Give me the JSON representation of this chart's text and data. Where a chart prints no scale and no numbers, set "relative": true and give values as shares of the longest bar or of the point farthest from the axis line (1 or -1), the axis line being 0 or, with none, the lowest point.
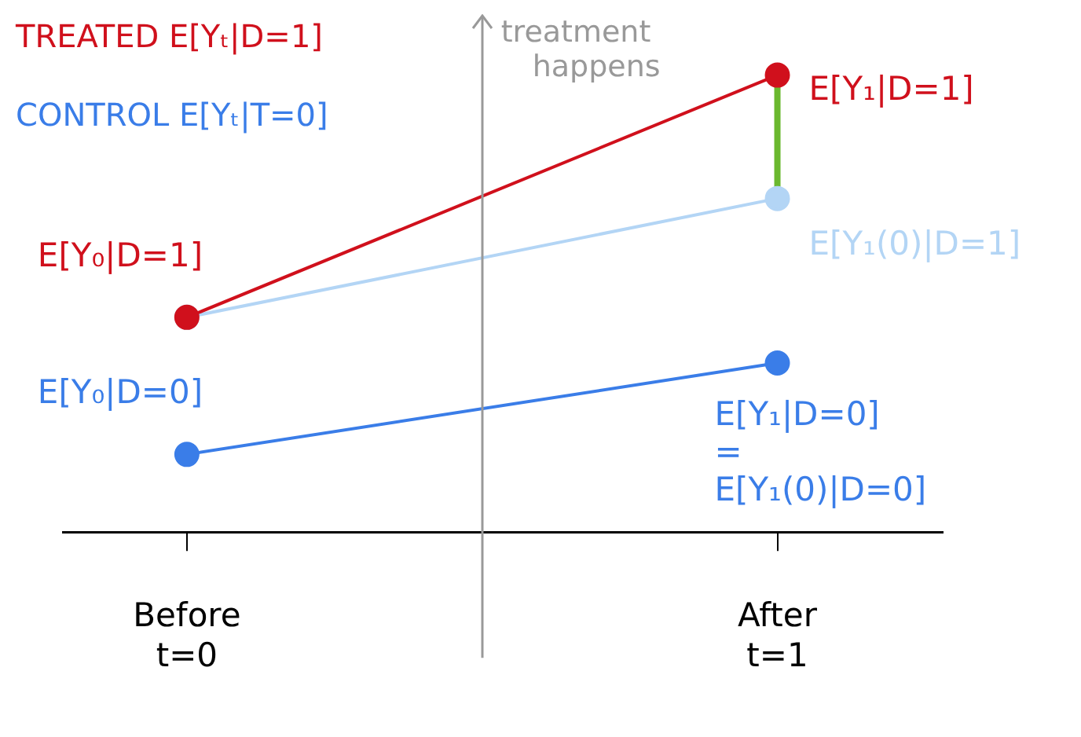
{
  "chart_data": {
    "type": "line",
    "relative": true,
    "categories": [
      "Before\nt=0",
      "After\nt=1"
    ],
    "series": [
      {
        "name": "TREATED E[Yₜ|D=1]",
        "color": "#d0101c",
        "values": [
          0.47,
          1
        ],
        "marker": "circle"
      },
      {
        "name": "CONTROL E[Yₜ|T=0]",
        "color": "#3a7de8",
        "values": [
          0.17,
          0.37
        ],
        "marker": "circle"
      },
      {
        "color": "#b3d5f5",
        "values": [
          0.47,
          0.73
        ],
        "marker": "circle"
      },
      {
        "color": "#6ab82e",
        "x": [
          "After\nt=1",
          "After\nt=1"
        ],
        "values": [
          0.73,
          1
        ],
        "marker": "none"
      }
    ],
    "legend": "top left",
    "annotations": [
      "treatment\nhappens",
      {
        "text": "E[Y₀|D=1]",
        "x": "Before\nt=0",
        "y": 0.47
      },
      {
        "text": "E[Y₁|D=1]",
        "x": "After\nt=1",
        "y": 1
      },
      {
        "text": "E[Y₁(0)|D=1]",
        "x": "After\nt=1",
        "y": 0.73
      },
      {
        "text": "E[Y₀|D=0]",
        "x": "Before\nt=0",
        "y": 0.17
      },
      {
        "text": "E[Y₁|D=0]\n=\nE[Y₁(0)|D=0]",
        "x": "After\nt=1",
        "y": 0.37
      }
    ]
  }
}
